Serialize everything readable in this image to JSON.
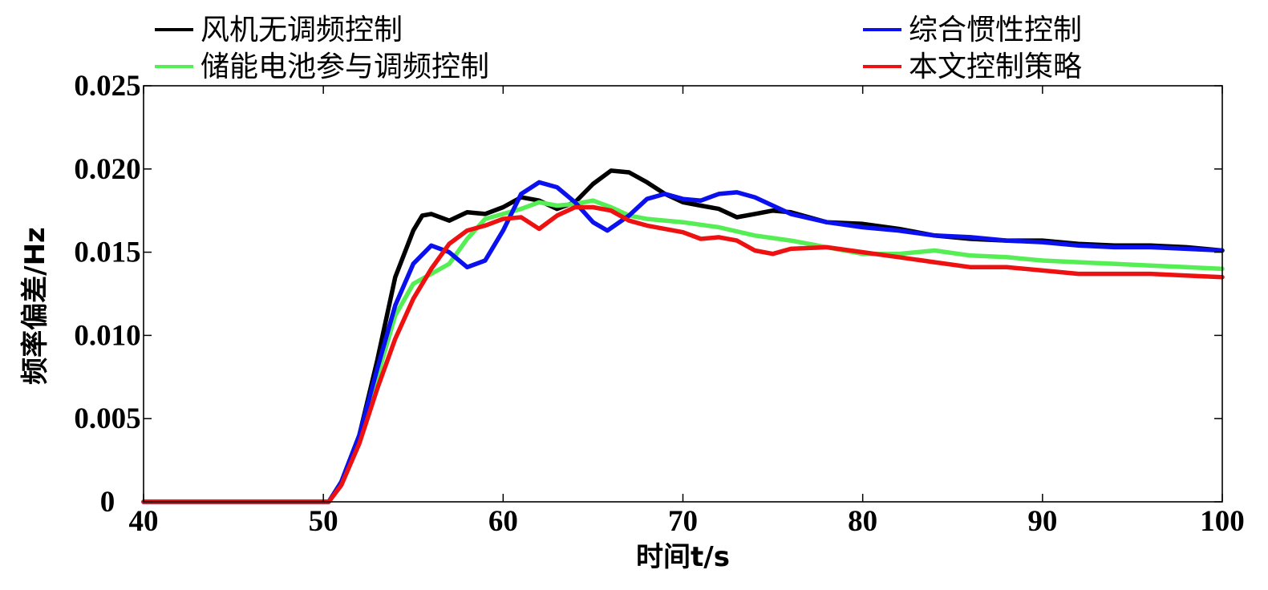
{
  "chart_data": {
    "type": "line",
    "title": "",
    "xlabel": "时间t/s",
    "ylabel": "频率偏差/Hz",
    "xlim": [
      40,
      100
    ],
    "ylim": [
      0,
      0.025
    ],
    "x_ticks": [
      40,
      50,
      60,
      70,
      80,
      90,
      100
    ],
    "x_tick_labels": [
      "40",
      "50",
      "60",
      "70",
      "80",
      "90",
      "100"
    ],
    "y_ticks": [
      0,
      0.005,
      0.01,
      0.015,
      0.02,
      0.025
    ],
    "y_tick_labels": [
      "0",
      "0.005",
      "0.010",
      "0.015",
      "0.020",
      "0.025"
    ],
    "grid": false,
    "legend_position": "top",
    "series": [
      {
        "name": "风机无调频控制",
        "color": "#000000",
        "points": [
          [
            40,
            0
          ],
          [
            50.3,
            0
          ],
          [
            51,
            0.0012
          ],
          [
            52,
            0.004
          ],
          [
            53,
            0.0085
          ],
          [
            54,
            0.0135
          ],
          [
            55,
            0.0163
          ],
          [
            55.5,
            0.0172
          ],
          [
            56,
            0.0173
          ],
          [
            57,
            0.0169
          ],
          [
            58,
            0.0174
          ],
          [
            59,
            0.0173
          ],
          [
            60,
            0.0177
          ],
          [
            61,
            0.0183
          ],
          [
            62,
            0.0181
          ],
          [
            63,
            0.0176
          ],
          [
            64,
            0.018
          ],
          [
            65,
            0.0191
          ],
          [
            66,
            0.0199
          ],
          [
            67,
            0.0198
          ],
          [
            68,
            0.0192
          ],
          [
            69,
            0.0185
          ],
          [
            70,
            0.018
          ],
          [
            71,
            0.0178
          ],
          [
            72,
            0.0176
          ],
          [
            73,
            0.0171
          ],
          [
            74,
            0.0173
          ],
          [
            75,
            0.0175
          ],
          [
            76,
            0.0174
          ],
          [
            78,
            0.0168
          ],
          [
            80,
            0.0167
          ],
          [
            82,
            0.0164
          ],
          [
            84,
            0.016
          ],
          [
            86,
            0.0158
          ],
          [
            88,
            0.0157
          ],
          [
            90,
            0.0157
          ],
          [
            92,
            0.0155
          ],
          [
            94,
            0.0154
          ],
          [
            96,
            0.0154
          ],
          [
            98,
            0.0153
          ],
          [
            100,
            0.0151
          ]
        ]
      },
      {
        "name": "储能电池参与调频控制",
        "color": "#55ee55",
        "points": [
          [
            40,
            0
          ],
          [
            50.3,
            0
          ],
          [
            51,
            0.0012
          ],
          [
            52,
            0.0038
          ],
          [
            53,
            0.0075
          ],
          [
            54,
            0.0112
          ],
          [
            55,
            0.0131
          ],
          [
            56,
            0.0137
          ],
          [
            57,
            0.0143
          ],
          [
            58,
            0.0158
          ],
          [
            59,
            0.017
          ],
          [
            60,
            0.0173
          ],
          [
            61,
            0.0176
          ],
          [
            62,
            0.018
          ],
          [
            63,
            0.0178
          ],
          [
            64,
            0.0179
          ],
          [
            65,
            0.0181
          ],
          [
            66,
            0.0177
          ],
          [
            67,
            0.0172
          ],
          [
            68,
            0.017
          ],
          [
            70,
            0.0168
          ],
          [
            72,
            0.0165
          ],
          [
            74,
            0.016
          ],
          [
            76,
            0.0157
          ],
          [
            78,
            0.0153
          ],
          [
            80,
            0.0149
          ],
          [
            82,
            0.0149
          ],
          [
            84,
            0.0151
          ],
          [
            86,
            0.0148
          ],
          [
            88,
            0.0147
          ],
          [
            90,
            0.0145
          ],
          [
            92,
            0.0144
          ],
          [
            94,
            0.0143
          ],
          [
            96,
            0.0142
          ],
          [
            98,
            0.0141
          ],
          [
            100,
            0.014
          ]
        ]
      },
      {
        "name": "综合惯性控制",
        "color": "#0a10ee",
        "points": [
          [
            40,
            0
          ],
          [
            50.3,
            0
          ],
          [
            51,
            0.0012
          ],
          [
            52,
            0.004
          ],
          [
            53,
            0.008
          ],
          [
            54,
            0.0118
          ],
          [
            55,
            0.0143
          ],
          [
            56,
            0.0154
          ],
          [
            57,
            0.015
          ],
          [
            58,
            0.0141
          ],
          [
            59,
            0.0145
          ],
          [
            60,
            0.0163
          ],
          [
            61,
            0.0185
          ],
          [
            62,
            0.0192
          ],
          [
            63,
            0.0189
          ],
          [
            64,
            0.018
          ],
          [
            65,
            0.0168
          ],
          [
            65.8,
            0.0163
          ],
          [
            67,
            0.0172
          ],
          [
            68,
            0.0182
          ],
          [
            69,
            0.0185
          ],
          [
            70,
            0.0182
          ],
          [
            71,
            0.0181
          ],
          [
            72,
            0.0185
          ],
          [
            73,
            0.0186
          ],
          [
            74,
            0.0183
          ],
          [
            75,
            0.0178
          ],
          [
            76,
            0.0173
          ],
          [
            78,
            0.0168
          ],
          [
            80,
            0.0165
          ],
          [
            82,
            0.0163
          ],
          [
            84,
            0.016
          ],
          [
            86,
            0.0159
          ],
          [
            88,
            0.0157
          ],
          [
            90,
            0.0156
          ],
          [
            92,
            0.0154
          ],
          [
            94,
            0.0153
          ],
          [
            96,
            0.0153
          ],
          [
            98,
            0.0152
          ],
          [
            100,
            0.0151
          ]
        ]
      },
      {
        "name": "本文控制策略",
        "color": "#ee1111",
        "points": [
          [
            40,
            0
          ],
          [
            50.3,
            0
          ],
          [
            51,
            0.001
          ],
          [
            52,
            0.0035
          ],
          [
            53,
            0.0068
          ],
          [
            54,
            0.0098
          ],
          [
            55,
            0.0122
          ],
          [
            56,
            0.014
          ],
          [
            57,
            0.0155
          ],
          [
            58,
            0.0163
          ],
          [
            59,
            0.0166
          ],
          [
            60,
            0.017
          ],
          [
            61,
            0.0171
          ],
          [
            62,
            0.0164
          ],
          [
            63,
            0.0172
          ],
          [
            64,
            0.0177
          ],
          [
            65,
            0.0177
          ],
          [
            66,
            0.0175
          ],
          [
            67,
            0.0169
          ],
          [
            68,
            0.0166
          ],
          [
            70,
            0.0162
          ],
          [
            71,
            0.0158
          ],
          [
            72,
            0.0159
          ],
          [
            73,
            0.0157
          ],
          [
            74,
            0.0151
          ],
          [
            75,
            0.0149
          ],
          [
            76,
            0.0152
          ],
          [
            78,
            0.0153
          ],
          [
            80,
            0.015
          ],
          [
            82,
            0.0147
          ],
          [
            84,
            0.0144
          ],
          [
            86,
            0.0141
          ],
          [
            88,
            0.0141
          ],
          [
            90,
            0.0139
          ],
          [
            92,
            0.0137
          ],
          [
            94,
            0.0137
          ],
          [
            96,
            0.0137
          ],
          [
            98,
            0.0136
          ],
          [
            100,
            0.0135
          ]
        ]
      }
    ]
  }
}
